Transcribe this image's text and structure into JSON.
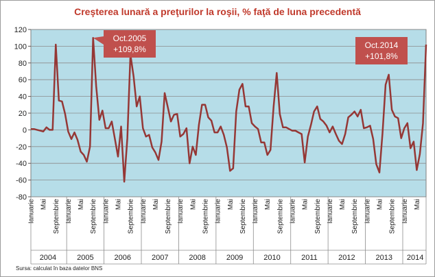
{
  "source_note": "Sursa: calculat în baza datelor BNS",
  "colors": {
    "plot_bg": "#b6dde8",
    "line": "#953735",
    "title": "#c0392b",
    "callout": "#c0504d"
  },
  "chart_data": {
    "type": "line",
    "title": "Creşterea lunară a preţurilor la roşii, % faţă de luna precedentă",
    "ylim": [
      -80,
      120
    ],
    "yticks": [
      -80,
      -60,
      -40,
      -20,
      0,
      20,
      40,
      60,
      80,
      100,
      120
    ],
    "grid": true,
    "years": [
      "2004",
      "2005",
      "2006",
      "2007",
      "2008",
      "2009",
      "2010",
      "2011",
      "2012",
      "2013",
      "2014"
    ],
    "month_tick_labels": [
      "Ianuarie",
      "Mai",
      "Septembrie"
    ],
    "series": [
      {
        "name": "Creşterea lunară a preţurilor la roşii",
        "values": [
          1,
          1,
          0,
          -1,
          -2,
          3,
          0,
          0,
          102,
          35,
          34,
          19,
          -2,
          -11,
          -3,
          -12,
          -26,
          -30,
          -38,
          -20,
          110,
          52,
          12,
          23,
          2,
          2,
          10,
          -11,
          -32,
          4,
          -62,
          -10,
          90,
          64,
          28,
          40,
          2,
          -8,
          -6,
          -21,
          -27,
          -36,
          -14,
          44,
          27,
          10,
          18,
          19,
          -8,
          -5,
          2,
          -40,
          -20,
          -30,
          6,
          30,
          30,
          15,
          11,
          -3,
          -3,
          4,
          -6,
          -21,
          -49,
          -46,
          22,
          48,
          55,
          28,
          28,
          8,
          4,
          1,
          -15,
          -15,
          -30,
          -24,
          28,
          68,
          19,
          3,
          3,
          1,
          -1,
          -1,
          -3,
          -5,
          -39,
          -8,
          6,
          22,
          28,
          13,
          10,
          5,
          -3,
          4,
          -5,
          -13,
          -17,
          -5,
          15,
          18,
          22,
          16,
          24,
          2,
          3,
          5,
          -11,
          -41,
          -51,
          -4,
          54,
          66,
          24,
          16,
          14,
          -10,
          2,
          8,
          -22,
          -14,
          -48,
          -29,
          8,
          102
        ]
      }
    ],
    "annotations": [
      {
        "label": "Oct.2005",
        "value_label": "+109,8%",
        "index": 20
      },
      {
        "label": "Oct.2014",
        "value_label": "+101,8%",
        "index": 129
      }
    ]
  }
}
